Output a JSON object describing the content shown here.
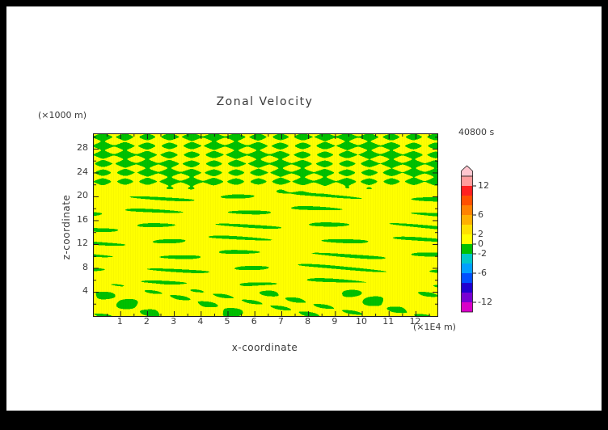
{
  "figure": {
    "background": "#000000",
    "page_background": "#ffffff",
    "text_color": "#3a3a3a"
  },
  "chart_data": {
    "type": "heatmap",
    "title": "Zonal Velocity",
    "time_label": "40800 s",
    "xlabel": "x-coordinate",
    "x_units": "(×1E4 m)",
    "ylabel": "z-coordinate",
    "y_units": "(×1000 m)",
    "x_range": [
      0,
      12.8
    ],
    "x_ticks": [
      1,
      2,
      3,
      4,
      5,
      6,
      7,
      8,
      9,
      10,
      11,
      12
    ],
    "x_minor_step": 0.5,
    "z_range": [
      0,
      30.5
    ],
    "z_ticks": [
      4,
      8,
      12,
      16,
      20,
      24,
      28
    ],
    "z_minor_step": 2,
    "contour_interval": 2,
    "displayed_field_range": [
      -2,
      2
    ],
    "fill_colors": {
      "band_0_to_2": "#ffff00",
      "band_minus2_to_0": "#00c000"
    },
    "field_description": "Cross-section of zonal velocity at t=40800 s. Field values stay between -2 and 2: yellow fill where 0<u<2, green fill where -2<u<0. Upper region (z≈21-30) shows a diagonal wave-interference crosshatch pattern; middle region (z≈6-20) shows thin wavy horizontal green streaks on yellow; lowest region (z<6) shows short irregular streaks.",
    "colorbar": {
      "min": -14,
      "max": 14,
      "step": 2,
      "labeled_levels": [
        12,
        6,
        2,
        0,
        -2,
        -6,
        -12
      ],
      "overflow_cap_color": "#ffc6cf",
      "segments_top_to_bottom": [
        {
          "range": [
            12,
            14
          ],
          "color": "#ff9c9c"
        },
        {
          "range": [
            10,
            12
          ],
          "color": "#ff2020"
        },
        {
          "range": [
            8,
            10
          ],
          "color": "#ff5000"
        },
        {
          "range": [
            6,
            8
          ],
          "color": "#ff8200"
        },
        {
          "range": [
            4,
            6
          ],
          "color": "#ffb000"
        },
        {
          "range": [
            2,
            4
          ],
          "color": "#ffe000"
        },
        {
          "range": [
            0,
            2
          ],
          "color": "#ffff00"
        },
        {
          "range": [
            -2,
            0
          ],
          "color": "#00c000"
        },
        {
          "range": [
            -4,
            -2
          ],
          "color": "#00c8c8"
        },
        {
          "range": [
            -6,
            -4
          ],
          "color": "#00a0ff"
        },
        {
          "range": [
            -8,
            -6
          ],
          "color": "#0050ff"
        },
        {
          "range": [
            -10,
            -8
          ],
          "color": "#2000d0"
        },
        {
          "range": [
            -12,
            -10
          ],
          "color": "#7800d2"
        },
        {
          "range": [
            -14,
            -12
          ],
          "color": "#d800c8"
        }
      ]
    }
  }
}
